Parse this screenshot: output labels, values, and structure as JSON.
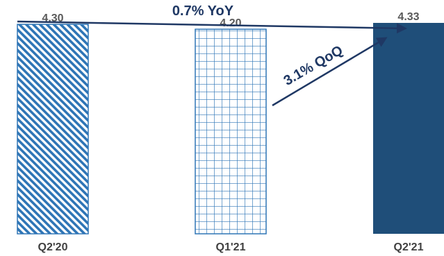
{
  "chart_data": {
    "type": "bar",
    "categories": [
      "Q2'20",
      "Q1'21",
      "Q2'21"
    ],
    "values": [
      4.3,
      4.2,
      4.33
    ],
    "value_labels": [
      "4.30",
      "4.20",
      "4.33"
    ],
    "bar_styles": [
      "diagonal-hatch",
      "grid-hatch",
      "solid"
    ],
    "title": "",
    "xlabel": "",
    "ylabel": "",
    "ylim": [
      0,
      4.8
    ],
    "grid": false,
    "annotations": [
      {
        "name": "yoy",
        "text": "0.7% YoY",
        "from": "Q2'20",
        "to": "Q2'21"
      },
      {
        "name": "qoq",
        "text": "3.1% QoQ",
        "from": "Q1'21",
        "to": "Q2'21"
      }
    ],
    "colors": {
      "bar_stroke": "#2e75b6",
      "bar_solid": "#1f4e79",
      "arrow": "#1f3864",
      "annotation_text": "#1f3864"
    }
  }
}
